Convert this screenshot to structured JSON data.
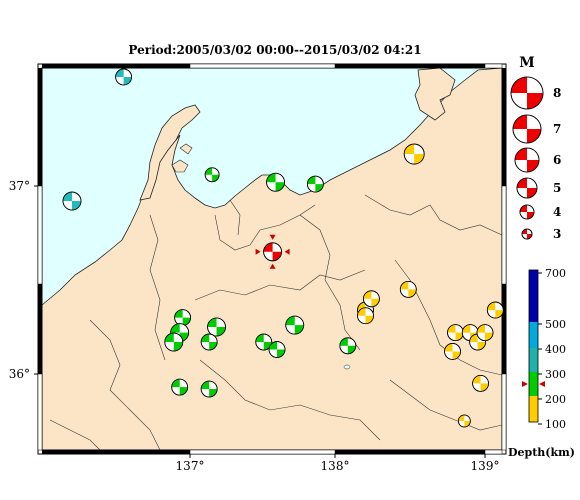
{
  "title": "Period:2005/03/02 00:00--2015/03/02 04:21",
  "axes": {
    "lon_labels": [
      "137°",
      "138°",
      "139°"
    ],
    "lat_labels": [
      "37°",
      "36°"
    ]
  },
  "magnitude_legend": {
    "header": "M",
    "items": [
      "8",
      "7",
      "6",
      "5",
      "4",
      "3"
    ]
  },
  "depth_legend": {
    "ticks": [
      "700",
      "500",
      "400",
      "300",
      "200",
      "100"
    ],
    "unit_label": "Depth(km)",
    "marker_depth": 250
  },
  "colors": {
    "sea": "#e0ffff",
    "land": "#fbe5c6",
    "shallow": "#ffd700",
    "depth_100_200": "#ffcc00",
    "depth_200_300": "#00cc00",
    "depth_300_400": "#20b2aa",
    "depth_400_500": "#00aacc",
    "depth_500_700": "#0000aa",
    "mainshock": "#ee0000",
    "marker": "#cc0000"
  },
  "events": [
    {
      "lon": 136.55,
      "lat": 37.58,
      "color": "#22bbbb",
      "size": 8
    },
    {
      "lon": 136.2,
      "lat": 36.92,
      "color": "#22bbbb",
      "size": 9
    },
    {
      "lon": 137.15,
      "lat": 37.06,
      "color": "#00cc00",
      "size": 7
    },
    {
      "lon": 137.58,
      "lat": 37.02,
      "color": "#00cc00",
      "size": 9
    },
    {
      "lon": 137.85,
      "lat": 37.01,
      "color": "#00cc00",
      "size": 8
    },
    {
      "lon": 138.52,
      "lat": 37.17,
      "color": "#ffcc00",
      "size": 10
    },
    {
      "lon": 137.56,
      "lat": 36.65,
      "color": "#ee0000",
      "size": 9,
      "main": true
    },
    {
      "lon": 136.95,
      "lat": 36.3,
      "color": "#00cc00",
      "size": 8
    },
    {
      "lon": 136.93,
      "lat": 36.22,
      "color": "#00cc00",
      "size": 9
    },
    {
      "lon": 136.89,
      "lat": 36.17,
      "color": "#00cc00",
      "size": 9
    },
    {
      "lon": 137.18,
      "lat": 36.25,
      "color": "#00cc00",
      "size": 9
    },
    {
      "lon": 137.13,
      "lat": 36.17,
      "color": "#00cc00",
      "size": 8
    },
    {
      "lon": 137.5,
      "lat": 36.17,
      "color": "#00cc00",
      "size": 8
    },
    {
      "lon": 137.59,
      "lat": 36.13,
      "color": "#00cc00",
      "size": 8
    },
    {
      "lon": 137.71,
      "lat": 36.26,
      "color": "#00cc00",
      "size": 9
    },
    {
      "lon": 138.07,
      "lat": 36.15,
      "color": "#00cc00",
      "size": 8
    },
    {
      "lon": 136.93,
      "lat": 35.93,
      "color": "#00cc00",
      "size": 8
    },
    {
      "lon": 137.13,
      "lat": 35.92,
      "color": "#00cc00",
      "size": 8
    },
    {
      "lon": 138.19,
      "lat": 36.34,
      "color": "#ffcc00",
      "size": 8
    },
    {
      "lon": 138.23,
      "lat": 36.4,
      "color": "#ffcc00",
      "size": 8
    },
    {
      "lon": 138.19,
      "lat": 36.31,
      "color": "#ffcc00",
      "size": 8
    },
    {
      "lon": 138.48,
      "lat": 36.45,
      "color": "#ffcc00",
      "size": 8
    },
    {
      "lon": 138.8,
      "lat": 36.22,
      "color": "#ffcc00",
      "size": 8
    },
    {
      "lon": 138.9,
      "lat": 36.22,
      "color": "#ffcc00",
      "size": 8
    },
    {
      "lon": 138.95,
      "lat": 36.17,
      "color": "#ffcc00",
      "size": 8
    },
    {
      "lon": 139.0,
      "lat": 36.22,
      "color": "#ffcc00",
      "size": 8
    },
    {
      "lon": 138.78,
      "lat": 36.12,
      "color": "#ffcc00",
      "size": 8
    },
    {
      "lon": 139.07,
      "lat": 36.34,
      "color": "#ffcc00",
      "size": 8
    },
    {
      "lon": 138.97,
      "lat": 35.95,
      "color": "#ffcc00",
      "size": 8
    },
    {
      "lon": 138.86,
      "lat": 35.75,
      "color": "#ffcc00",
      "size": 6
    }
  ]
}
